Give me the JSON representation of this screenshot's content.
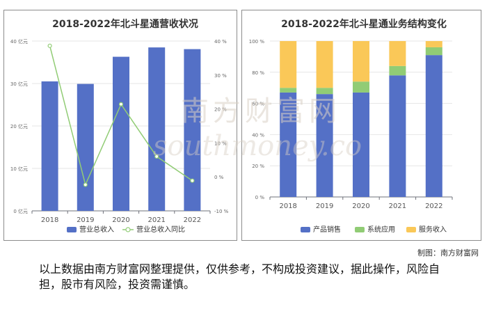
{
  "chart_data": [
    {
      "type": "bar",
      "title": "2018-2022年北斗星通营收状况",
      "categories": [
        "2018",
        "2019",
        "2020",
        "2021",
        "2022"
      ],
      "series": [
        {
          "name": "营业总收入",
          "type": "bar",
          "axis": "left",
          "values": [
            30.5,
            29.9,
            36.3,
            38.5,
            38.1
          ],
          "color": "#5470c6"
        },
        {
          "name": "营业总收入同比",
          "type": "line",
          "axis": "right",
          "values": [
            38.6,
            -2.3,
            21.4,
            6.0,
            -1.1
          ],
          "color": "#91cc75"
        }
      ],
      "ylim": [
        0,
        40
      ],
      "y_ticks": [
        "0 亿元",
        "10 亿元",
        "20 亿元",
        "30 亿元",
        "40 亿元"
      ],
      "y2lim": [
        -10,
        40
      ],
      "y2_ticks": [
        "-10 %",
        "0 %",
        "10 %",
        "20 %",
        "30 %",
        "40 %"
      ],
      "grid": true,
      "legend": "bottom"
    },
    {
      "type": "bar",
      "stacked": true,
      "title": "2018-2022年北斗星通业务结构变化",
      "categories": [
        "2018",
        "2019",
        "2020",
        "2021",
        "2022"
      ],
      "series": [
        {
          "name": "产品销售",
          "values": [
            67,
            66,
            67,
            78,
            91
          ],
          "color": "#5470c6"
        },
        {
          "name": "系统应用",
          "values": [
            3,
            4,
            7,
            6,
            5
          ],
          "color": "#91cc75"
        },
        {
          "name": "服务收入",
          "values": [
            30,
            30,
            26,
            16,
            4
          ],
          "color": "#fac858"
        }
      ],
      "ylim": [
        0,
        100
      ],
      "y_ticks": [
        "0 %",
        "20 %",
        "40 %",
        "60 %",
        "80 %",
        "100 %"
      ],
      "grid": true,
      "legend": "bottom"
    }
  ],
  "source_label": "制图：南方财富网",
  "disclaimer": "以上数据由南方财富网整理提供，仅供参考，不构成投资建议，据此操作，风险自担，股市有风险，投资需谨慎。",
  "watermark": {
    "cn": "南方财富网",
    "en": "southmoney.com"
  }
}
